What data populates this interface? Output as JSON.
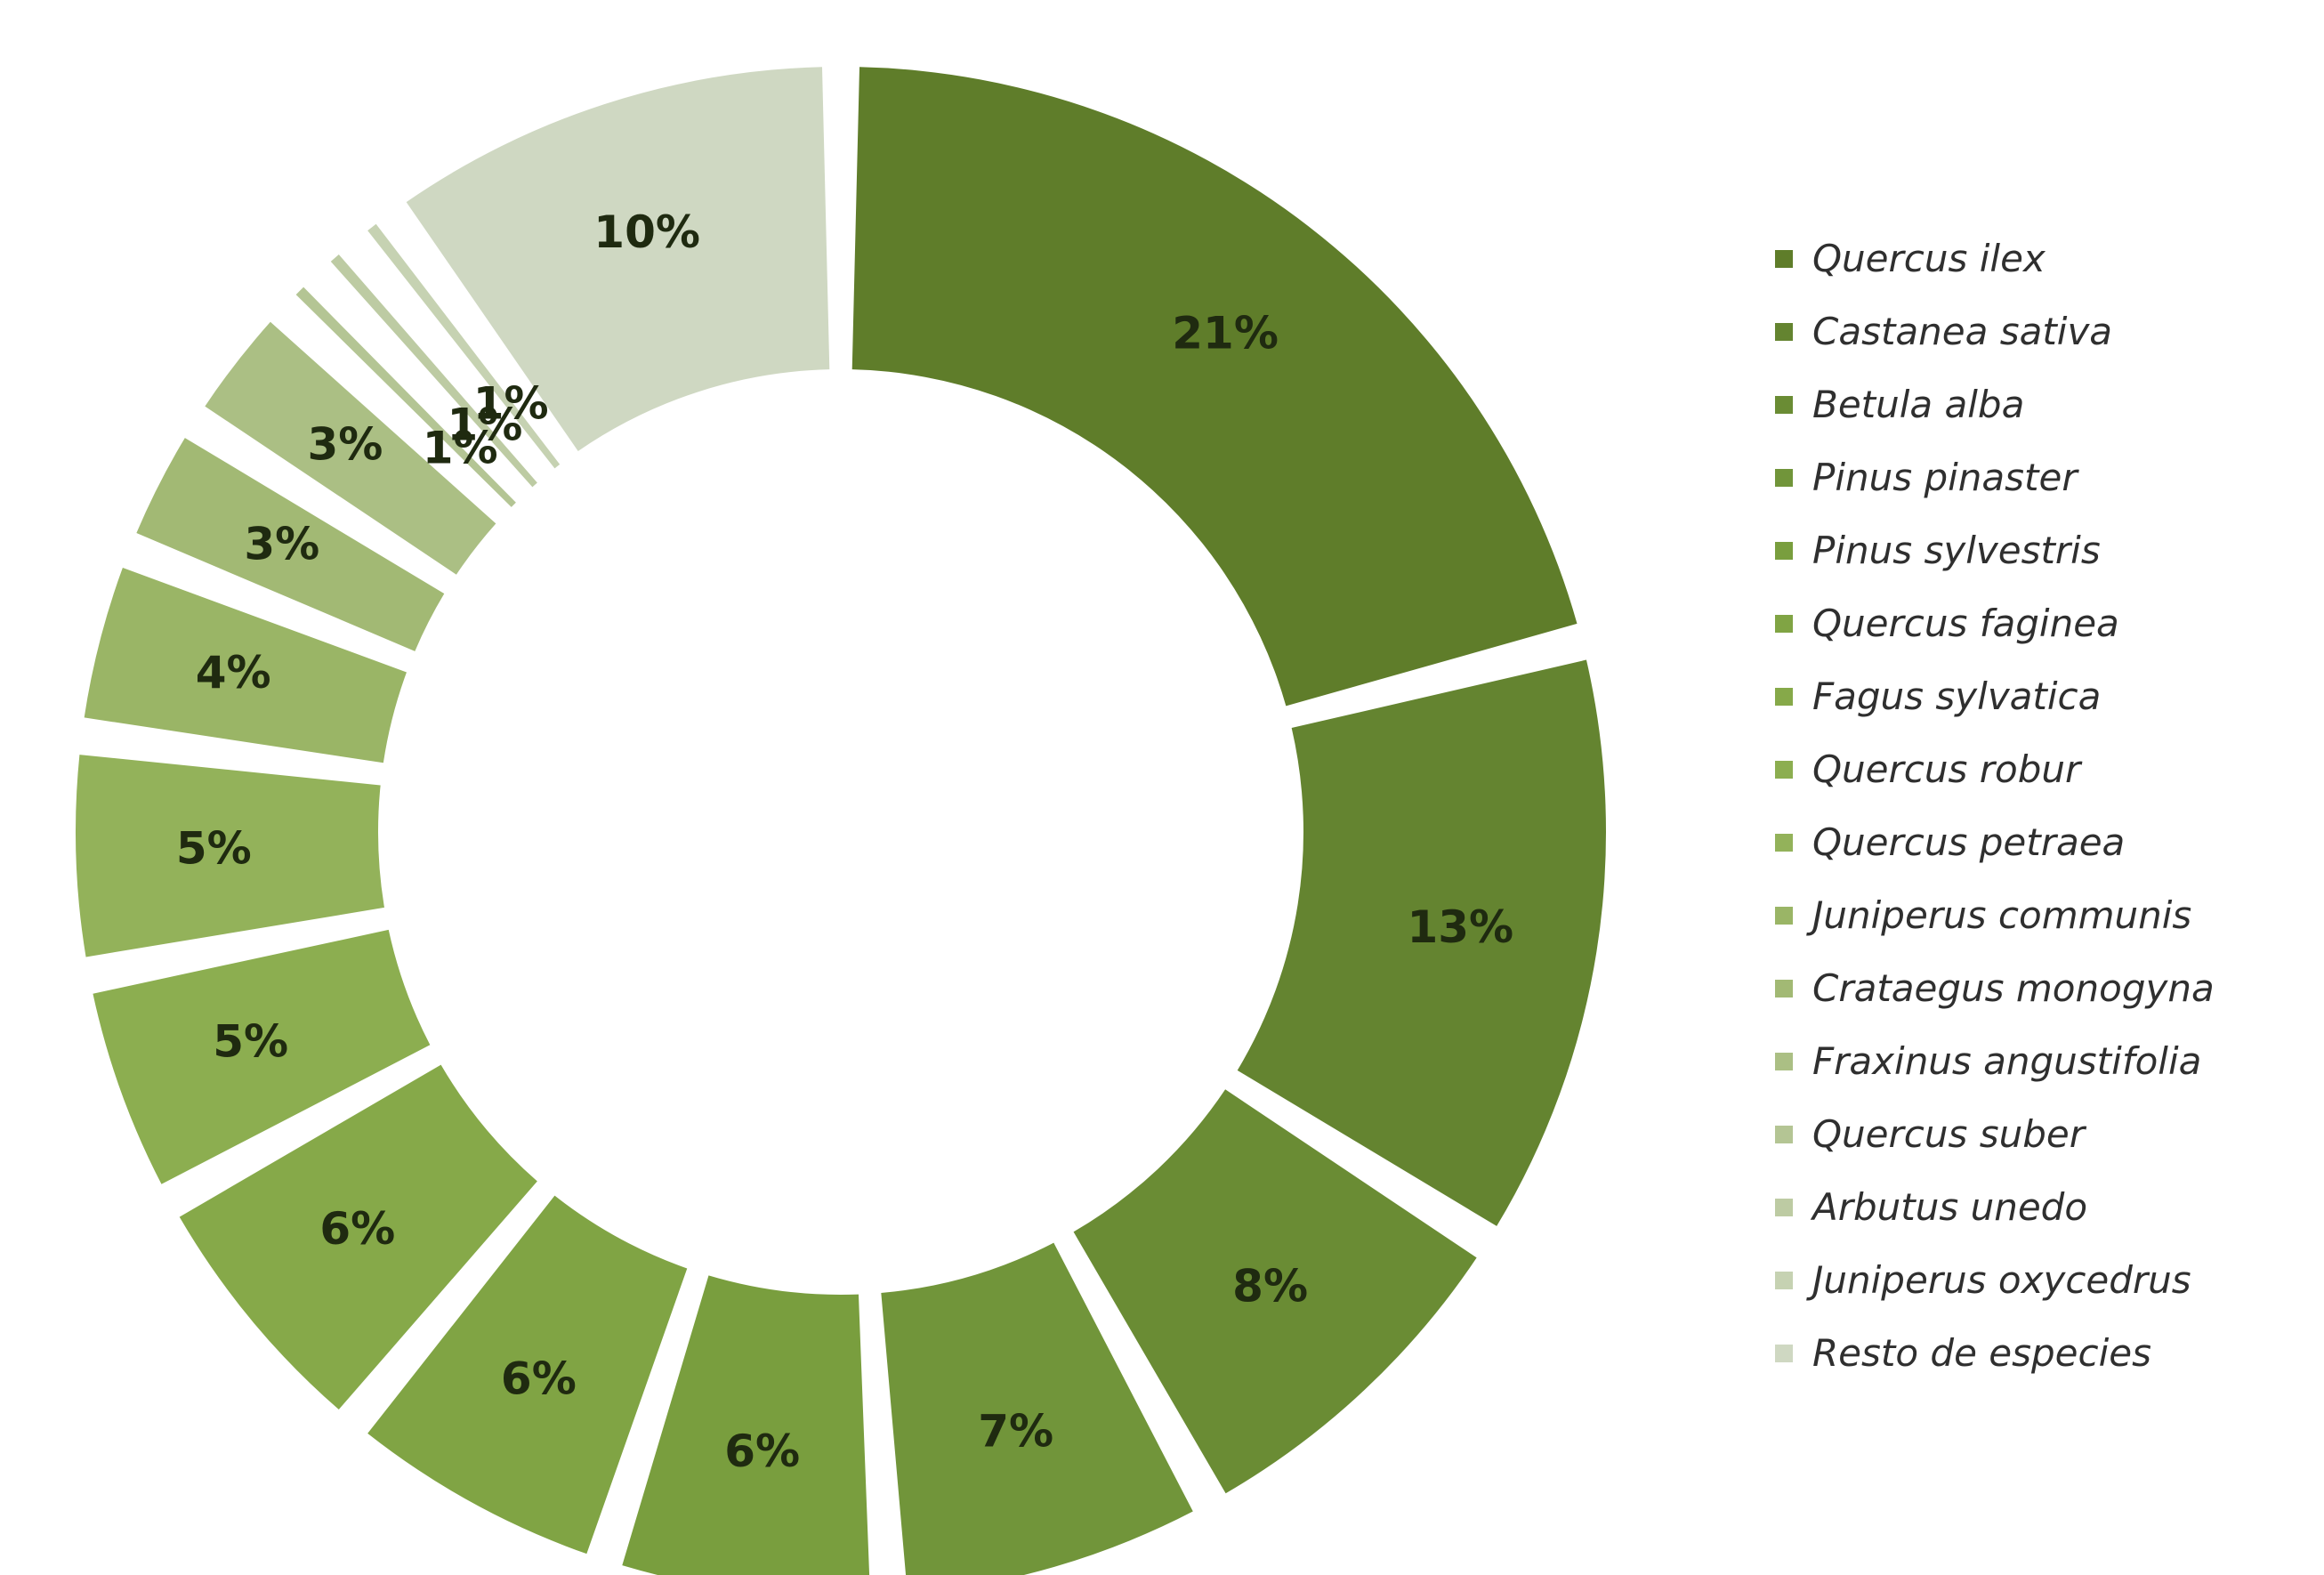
{
  "chart_data": {
    "type": "pie",
    "title": "",
    "legend_position": "right",
    "slices": [
      {
        "name": "Quercus ilex",
        "value": 21,
        "label": "21%",
        "color": "#5f7d2a"
      },
      {
        "name": "Castanea sativa",
        "value": 13,
        "label": "13%",
        "color": "#648430"
      },
      {
        "name": "Betula alba",
        "value": 8,
        "label": "8%",
        "color": "#6a8c34"
      },
      {
        "name": "Pinus pinaster",
        "value": 7,
        "label": "7%",
        "color": "#71953a"
      },
      {
        "name": "Pinus sylvestris",
        "value": 6,
        "label": "6%",
        "color": "#799e3e"
      },
      {
        "name": "Quercus faginea",
        "value": 6,
        "label": "6%",
        "color": "#80a444"
      },
      {
        "name": "Fagus sylvatica",
        "value": 6,
        "label": "6%",
        "color": "#86a949"
      },
      {
        "name": "Quercus robur",
        "value": 5,
        "label": "5%",
        "color": "#8cae50"
      },
      {
        "name": "Quercus petraea",
        "value": 5,
        "label": "5%",
        "color": "#93b25a"
      },
      {
        "name": "Juniperus communis",
        "value": 4,
        "label": "4%",
        "color": "#9ab566"
      },
      {
        "name": "Crataegus monogyna",
        "value": 3,
        "label": "3%",
        "color": "#a2b974"
      },
      {
        "name": "Fraxinus angustifolia",
        "value": 3,
        "label": "3%",
        "color": "#abbf84"
      },
      {
        "name": "Quercus suber",
        "value": 1,
        "label": "1%",
        "color": "#b4c594"
      },
      {
        "name": "Arbutus unedo",
        "value": 1,
        "label": "1%",
        "color": "#bdcba3"
      },
      {
        "name": "Juniperus oxycedrus",
        "value": 1,
        "label": "1%",
        "color": "#c6d2b2"
      },
      {
        "name": "Resto de especies",
        "value": 10,
        "label": "10%",
        "color": "#cfd8c2"
      }
    ]
  }
}
